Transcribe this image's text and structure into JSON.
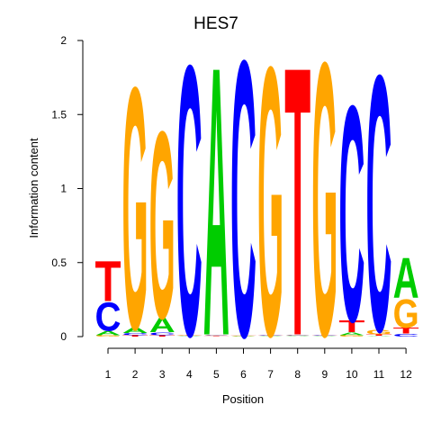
{
  "chart_data": {
    "type": "sequence-logo",
    "title": "HES7",
    "xlabel": "Position",
    "ylabel": "Information content",
    "ylim": [
      0,
      2
    ],
    "yticks": [
      0,
      0.5,
      1,
      1.5,
      2
    ],
    "ytick_labels": [
      "0",
      "0.5",
      "1",
      "1.5",
      "2"
    ],
    "positions": [
      1,
      2,
      3,
      4,
      5,
      6,
      7,
      8,
      9,
      10,
      11,
      12
    ],
    "xtick_labels": [
      "1",
      "2",
      "3",
      "4",
      "5",
      "6",
      "7",
      "8",
      "9",
      "10",
      "11",
      "12"
    ],
    "colors": {
      "A": "#00cc00",
      "C": "#0000ff",
      "G": "#ffa500",
      "T": "#ff0000"
    },
    "columns": [
      {
        "position": 1,
        "letters": [
          {
            "base": "G",
            "height": 0.01
          },
          {
            "base": "A",
            "height": 0.03
          },
          {
            "base": "C",
            "height": 0.2
          },
          {
            "base": "T",
            "height": 0.28
          }
        ]
      },
      {
        "position": 2,
        "letters": [
          {
            "base": "T",
            "height": 0.01
          },
          {
            "base": "C",
            "height": 0.015
          },
          {
            "base": "A",
            "height": 0.035
          },
          {
            "base": "G",
            "height": 1.68
          }
        ]
      },
      {
        "position": 3,
        "letters": [
          {
            "base": "T",
            "height": 0.01
          },
          {
            "base": "C",
            "height": 0.02
          },
          {
            "base": "A",
            "height": 0.1
          },
          {
            "base": "G",
            "height": 1.3
          }
        ]
      },
      {
        "position": 4,
        "letters": [
          {
            "base": "A",
            "height": 0.005
          },
          {
            "base": "G",
            "height": 0.005
          },
          {
            "base": "T",
            "height": 0.005
          },
          {
            "base": "C",
            "height": 1.88
          }
        ]
      },
      {
        "position": 5,
        "letters": [
          {
            "base": "T",
            "height": 0.005
          },
          {
            "base": "G",
            "height": 0.005
          },
          {
            "base": "C",
            "height": 0.005
          },
          {
            "base": "A",
            "height": 1.87
          }
        ]
      },
      {
        "position": 6,
        "letters": [
          {
            "base": "A",
            "height": 0.003
          },
          {
            "base": "G",
            "height": 0.003
          },
          {
            "base": "T",
            "height": 0.003
          },
          {
            "base": "C",
            "height": 1.92
          }
        ]
      },
      {
        "position": 7,
        "letters": [
          {
            "base": "A",
            "height": 0.005
          },
          {
            "base": "T",
            "height": 0.005
          },
          {
            "base": "C",
            "height": 0.005
          },
          {
            "base": "G",
            "height": 1.87
          }
        ]
      },
      {
        "position": 8,
        "letters": [
          {
            "base": "A",
            "height": 0.005
          },
          {
            "base": "C",
            "height": 0.005
          },
          {
            "base": "G",
            "height": 0.005
          },
          {
            "base": "T",
            "height": 1.87
          }
        ]
      },
      {
        "position": 9,
        "letters": [
          {
            "base": "A",
            "height": 0.005
          },
          {
            "base": "T",
            "height": 0.005
          },
          {
            "base": "C",
            "height": 0.005
          },
          {
            "base": "G",
            "height": 1.9
          }
        ]
      },
      {
        "position": 10,
        "letters": [
          {
            "base": "G",
            "height": 0.01
          },
          {
            "base": "A",
            "height": 0.02
          },
          {
            "base": "T",
            "height": 0.08
          },
          {
            "base": "C",
            "height": 1.5
          }
        ]
      },
      {
        "position": 11,
        "letters": [
          {
            "base": "A",
            "height": 0.005
          },
          {
            "base": "T",
            "height": 0.01
          },
          {
            "base": "G",
            "height": 0.03
          },
          {
            "base": "C",
            "height": 1.78
          }
        ]
      },
      {
        "position": 12,
        "letters": [
          {
            "base": "C",
            "height": 0.02
          },
          {
            "base": "T",
            "height": 0.04
          },
          {
            "base": "G",
            "height": 0.2
          },
          {
            "base": "A",
            "height": 0.28
          }
        ]
      }
    ]
  }
}
